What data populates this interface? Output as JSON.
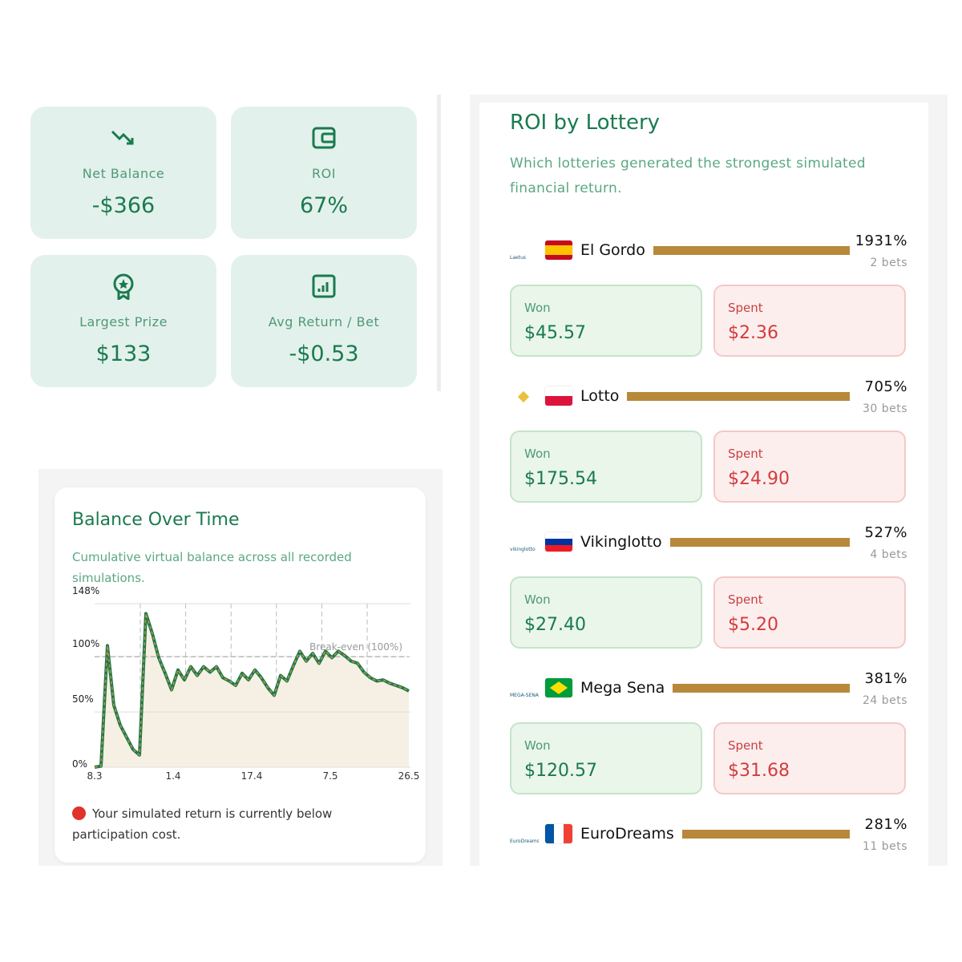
{
  "stats": [
    {
      "label": "Net Balance",
      "value": "-$366"
    },
    {
      "label": "ROI",
      "value": "67%"
    },
    {
      "label": "Largest Prize",
      "value": "$133"
    },
    {
      "label": "Avg Return / Bet",
      "value": "-$0.53"
    }
  ],
  "balance_chart": {
    "type": "line",
    "title": "Balance Over Time",
    "subtitle": "Cumulative virtual balance across all recorded simulations.",
    "ylim": [
      0,
      148
    ],
    "yticks": [
      {
        "value": 0,
        "label": "0%"
      },
      {
        "value": 50,
        "label": "50%"
      },
      {
        "value": 100,
        "label": "100%"
      },
      {
        "value": 148,
        "label": "148%"
      }
    ],
    "break_even": {
      "value": 100,
      "label": "Break-even (100%)"
    },
    "x_labels": [
      "8.3",
      "1.4",
      "17.4",
      "7.5",
      "26.5"
    ],
    "values": [
      0,
      1,
      110,
      56,
      38,
      27,
      16,
      11,
      139,
      121,
      99,
      85,
      70,
      88,
      79,
      91,
      83,
      91,
      86,
      91,
      81,
      78,
      74,
      85,
      79,
      88,
      81,
      72,
      65,
      83,
      78,
      92,
      105,
      96,
      103,
      94,
      105,
      99,
      105,
      101,
      96,
      94,
      86,
      81,
      78,
      79,
      76,
      74,
      72,
      69
    ],
    "color": "#1a7a4f",
    "dash_color": "#c8923a"
  },
  "note": "Your simulated return is currently below participation cost.",
  "roi": {
    "title": "ROI by Lottery",
    "subtitle": "Which lotteries generated the strongest simulated financial return.",
    "lotteries": [
      {
        "logo": "Laetus",
        "name": "El Gordo",
        "roi": "1931%",
        "bets": "2 bets",
        "won_label": "Won",
        "won": "$45.57",
        "spent_label": "Spent",
        "spent": "$2.36"
      },
      {
        "name": "Lotto",
        "roi": "705%",
        "bets": "30 bets",
        "won_label": "Won",
        "won": "$175.54",
        "spent_label": "Spent",
        "spent": "$24.90"
      },
      {
        "logo": "vikinglotto",
        "name": "Vikinglotto",
        "roi": "527%",
        "bets": "4 bets",
        "won_label": "Won",
        "won": "$27.40",
        "spent_label": "Spent",
        "spent": "$5.20"
      },
      {
        "logo": "MEGA-SENA",
        "name": "Mega Sena",
        "roi": "381%",
        "bets": "24 bets",
        "won_label": "Won",
        "won": "$120.57",
        "spent_label": "Spent",
        "spent": "$31.68"
      },
      {
        "logo": "EuroDreams",
        "name": "EuroDreams",
        "roi": "281%",
        "bets": "11 bets"
      }
    ]
  }
}
